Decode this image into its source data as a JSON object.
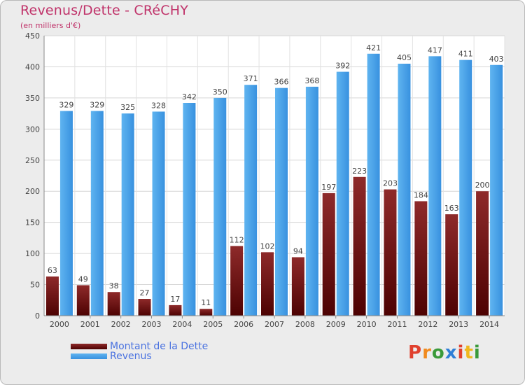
{
  "title": "Revenus/Dette - CRéCHY",
  "subtitle": "(en milliers d'€)",
  "chart_data": {
    "type": "bar",
    "categories": [
      "2000",
      "2001",
      "2002",
      "2003",
      "2004",
      "2005",
      "2006",
      "2007",
      "2008",
      "2009",
      "2010",
      "2011",
      "2012",
      "2013",
      "2014"
    ],
    "series": [
      {
        "name": "Montant de la Dette",
        "color": "#7a1515",
        "values": [
          63,
          49,
          38,
          27,
          17,
          11,
          112,
          102,
          94,
          197,
          223,
          203,
          184,
          163,
          200
        ]
      },
      {
        "name": "Revenus",
        "color": "#3d9be6",
        "values": [
          329,
          329,
          325,
          328,
          342,
          350,
          371,
          366,
          368,
          392,
          421,
          405,
          417,
          411,
          403
        ]
      }
    ],
    "ylim": [
      0,
      450
    ],
    "yticks": [
      0,
      50,
      100,
      150,
      200,
      250,
      300,
      350,
      400,
      450
    ],
    "grid": true,
    "legend_position": "bottom-left"
  },
  "legend": [
    {
      "label": "Montant de la Dette",
      "color": "#7a1515"
    },
    {
      "label": "Revenus",
      "color": "#3d9be6"
    }
  ],
  "logo": {
    "text": "Proxiti",
    "letter_colors": [
      "#e0402e",
      "#f08a1e",
      "#3a9a3a",
      "#2f7fd6",
      "#e0402e",
      "#f0b81e",
      "#3a9a3a"
    ]
  }
}
